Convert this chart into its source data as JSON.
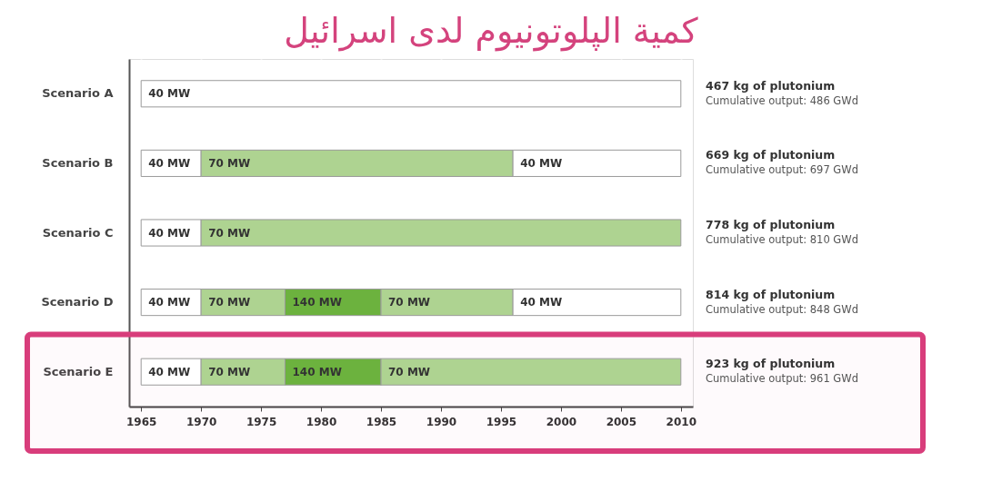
{
  "chart_data": {
    "type": "bar",
    "orientation": "horizontal",
    "title": "كمية الپلوتونيوم لدى اسرائيل",
    "categories": [
      "Scenario A",
      "Scenario B",
      "Scenario C",
      "Scenario D",
      "Scenario E"
    ],
    "series": [
      {
        "name": "40 MW",
        "color": "#ffffff",
        "base": [
          1965,
          1965,
          1965,
          1965,
          1965
        ],
        "values": [
          45,
          5,
          5,
          5,
          5
        ]
      },
      {
        "name": "70 MW",
        "color": "#aed391",
        "base": [
          null,
          1970,
          1970,
          1970,
          1970
        ],
        "values": [
          null,
          26,
          40,
          7,
          7
        ]
      },
      {
        "name": "140 MW",
        "color": "#6cb23e",
        "base": [
          null,
          null,
          null,
          1977,
          1977
        ],
        "values": [
          null,
          null,
          null,
          8,
          8
        ]
      },
      {
        "name": "70 MW",
        "color": "#aed391",
        "base": [
          null,
          null,
          null,
          1985,
          1985
        ],
        "values": [
          null,
          null,
          null,
          11,
          25
        ]
      },
      {
        "name": "40 MW",
        "color": "#ffffff",
        "base": [
          null,
          1996,
          null,
          1996,
          null
        ],
        "values": [
          null,
          14,
          null,
          14,
          null
        ]
      }
    ],
    "xlim": [
      1964,
      2011
    ],
    "xticks": [
      1965,
      1970,
      1975,
      1980,
      1985,
      1990,
      1995,
      2000,
      2005,
      2010
    ],
    "grid": "x",
    "annotations": [
      "467 kg of plutonium",
      "Cumulative output: 486 GWd",
      "669 kg of plutonium",
      "Cumulative output: 697 GWd",
      "778 kg of plutonium",
      "Cumulative output: 810 GWd",
      "814 kg of plutonium",
      "Cumulative output: 848 GWd",
      "923 kg of plutonium",
      "Cumulative output: 961 GWd"
    ],
    "bands": [
      {
        "axis": "y",
        "from": "Scenario E",
        "to": "Scenario E",
        "color": "#d83d7b"
      }
    ]
  }
}
